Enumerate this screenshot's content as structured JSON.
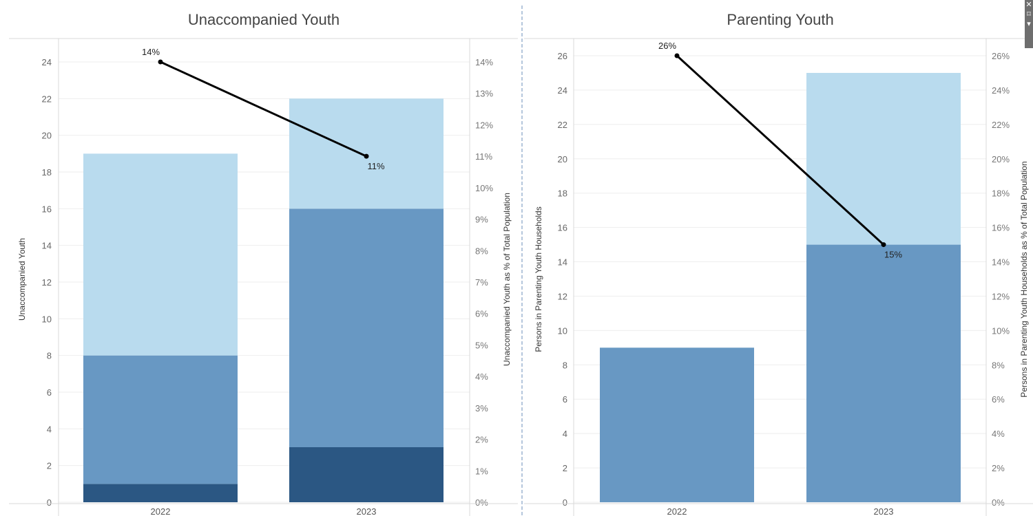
{
  "chart_data": [
    {
      "type": "bar",
      "title": "Unaccompanied Youth",
      "categories": [
        "2022",
        "2023"
      ],
      "stacked": true,
      "series": [
        {
          "values": [
            1,
            3
          ],
          "color": "#2b5783"
        },
        {
          "values": [
            7,
            13
          ],
          "color": "#6898c3"
        },
        {
          "values": [
            11,
            6
          ],
          "color": "#b9dbee"
        }
      ],
      "line": {
        "values": [
          0.14,
          0.11
        ],
        "labels": [
          "14%",
          "11%"
        ],
        "color": "#000000"
      },
      "ylabel": "Unaccompanied Youth",
      "y2label": "Unaccompanied Youth as % of Total Population",
      "ylim": [
        0,
        24
      ],
      "yticks": [
        0,
        2,
        4,
        6,
        8,
        10,
        12,
        14,
        16,
        18,
        20,
        22,
        24
      ],
      "y2lim": [
        0,
        0.14
      ],
      "y2ticks": [
        "0%",
        "1%",
        "2%",
        "3%",
        "4%",
        "5%",
        "6%",
        "7%",
        "8%",
        "9%",
        "10%",
        "11%",
        "12%",
        "13%",
        "14%"
      ],
      "grid": true
    },
    {
      "type": "bar",
      "title": "Parenting Youth",
      "categories": [
        "2022",
        "2023"
      ],
      "stacked": true,
      "series": [
        {
          "values": [
            9,
            15
          ],
          "color": "#6898c3"
        },
        {
          "values": [
            0,
            10
          ],
          "color": "#b9dbee"
        }
      ],
      "line": {
        "values": [
          0.26,
          0.15
        ],
        "labels": [
          "26%",
          "15%"
        ],
        "color": "#000000"
      },
      "ylabel": "Persons in Parenting Youth Households",
      "y2label": "Persons in Parenting Youth Households as % of Total Population",
      "ylim": [
        0,
        26
      ],
      "yticks": [
        0,
        2,
        4,
        6,
        8,
        10,
        12,
        14,
        16,
        18,
        20,
        22,
        24,
        26
      ],
      "y2lim": [
        0,
        0.26
      ],
      "y2ticks": [
        "0%",
        "2%",
        "4%",
        "6%",
        "8%",
        "10%",
        "12%",
        "14%",
        "16%",
        "18%",
        "20%",
        "22%",
        "24%",
        "26%"
      ],
      "grid": true
    }
  ],
  "ui": {
    "close_glyph": "✕",
    "pin_glyph": "⌑",
    "menu_glyph": "▾"
  }
}
